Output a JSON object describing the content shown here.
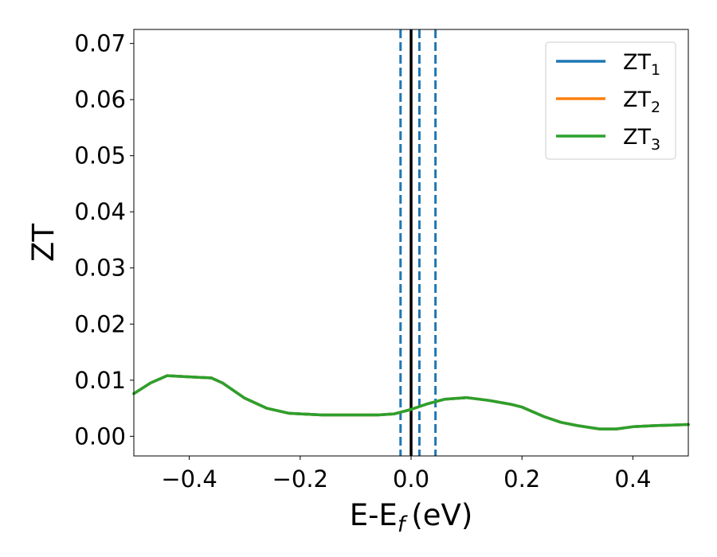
{
  "chart_data": {
    "type": "line",
    "xlabel": "E-E",
    "xlabel_sub": "f",
    "xlabel_unit": "(eV)",
    "ylabel": "ZT",
    "xlim": [
      -0.5,
      0.5
    ],
    "ylim": [
      -0.0035,
      0.0725
    ],
    "x_ticks": [
      -0.4,
      -0.2,
      0.0,
      0.2,
      0.4
    ],
    "x_tick_labels": [
      "−0.4",
      "−0.2",
      "0.0",
      "0.2",
      "0.4"
    ],
    "y_ticks": [
      0.0,
      0.01,
      0.02,
      0.03,
      0.04,
      0.05,
      0.06,
      0.07
    ],
    "y_tick_labels": [
      "0.00",
      "0.01",
      "0.02",
      "0.03",
      "0.04",
      "0.05",
      "0.06",
      "0.07"
    ],
    "grid": false,
    "legend_position": "top-right",
    "series": [
      {
        "name": "ZT",
        "sub": "1",
        "color": "#1f77b4",
        "x": [
          -0.5,
          -0.47,
          -0.44,
          -0.42,
          -0.4,
          -0.36,
          -0.34,
          -0.3,
          -0.26,
          -0.22,
          -0.2,
          -0.16,
          -0.1,
          -0.06,
          -0.03,
          0.0,
          0.03,
          0.06,
          0.1,
          0.14,
          0.18,
          0.2,
          0.24,
          0.27,
          0.3,
          0.34,
          0.37,
          0.4,
          0.44,
          0.47,
          0.5
        ],
        "y": [
          0.0076,
          0.0095,
          0.0108,
          0.0107,
          0.0106,
          0.0104,
          0.0095,
          0.0068,
          0.005,
          0.0041,
          0.004,
          0.0038,
          0.0038,
          0.0038,
          0.004,
          0.0048,
          0.0058,
          0.0066,
          0.0069,
          0.0064,
          0.0057,
          0.0052,
          0.0035,
          0.0025,
          0.0019,
          0.0013,
          0.0013,
          0.0017,
          0.0019,
          0.002,
          0.0021
        ]
      },
      {
        "name": "ZT",
        "sub": "2",
        "color": "#ff7f0e",
        "x": [
          -0.5,
          -0.47,
          -0.44,
          -0.42,
          -0.4,
          -0.36,
          -0.34,
          -0.3,
          -0.26,
          -0.22,
          -0.2,
          -0.16,
          -0.1,
          -0.06,
          -0.03,
          0.0,
          0.03,
          0.06,
          0.1,
          0.14,
          0.18,
          0.2,
          0.24,
          0.27,
          0.3,
          0.34,
          0.37,
          0.4,
          0.44,
          0.47,
          0.5
        ],
        "y": [
          0.0076,
          0.0095,
          0.0108,
          0.0107,
          0.0106,
          0.0104,
          0.0095,
          0.0068,
          0.005,
          0.0041,
          0.004,
          0.0038,
          0.0038,
          0.0038,
          0.004,
          0.0048,
          0.0058,
          0.0066,
          0.0069,
          0.0064,
          0.0057,
          0.0052,
          0.0035,
          0.0025,
          0.0019,
          0.0013,
          0.0013,
          0.0017,
          0.0019,
          0.002,
          0.0021
        ]
      },
      {
        "name": "ZT",
        "sub": "3",
        "color": "#2ca02c",
        "x": [
          -0.5,
          -0.47,
          -0.44,
          -0.42,
          -0.4,
          -0.36,
          -0.34,
          -0.3,
          -0.26,
          -0.22,
          -0.2,
          -0.16,
          -0.1,
          -0.06,
          -0.03,
          0.0,
          0.03,
          0.06,
          0.1,
          0.14,
          0.18,
          0.2,
          0.24,
          0.27,
          0.3,
          0.34,
          0.37,
          0.4,
          0.44,
          0.47,
          0.5
        ],
        "y": [
          0.0076,
          0.0095,
          0.0108,
          0.0107,
          0.0106,
          0.0104,
          0.0095,
          0.0068,
          0.005,
          0.0041,
          0.004,
          0.0038,
          0.0038,
          0.0038,
          0.004,
          0.0048,
          0.0058,
          0.0066,
          0.0069,
          0.0064,
          0.0057,
          0.0052,
          0.0035,
          0.0025,
          0.0019,
          0.0013,
          0.0013,
          0.0017,
          0.0019,
          0.002,
          0.0021
        ]
      }
    ],
    "vertical_lines": [
      {
        "x": 0.0,
        "style": "solid",
        "color": "#000000"
      },
      {
        "x": -0.019,
        "style": "dashed",
        "color": "#1f77b4"
      },
      {
        "x": 0.015,
        "style": "dashed",
        "color": "#1f77b4"
      },
      {
        "x": 0.044,
        "style": "dashed",
        "color": "#1f77b4"
      }
    ]
  }
}
